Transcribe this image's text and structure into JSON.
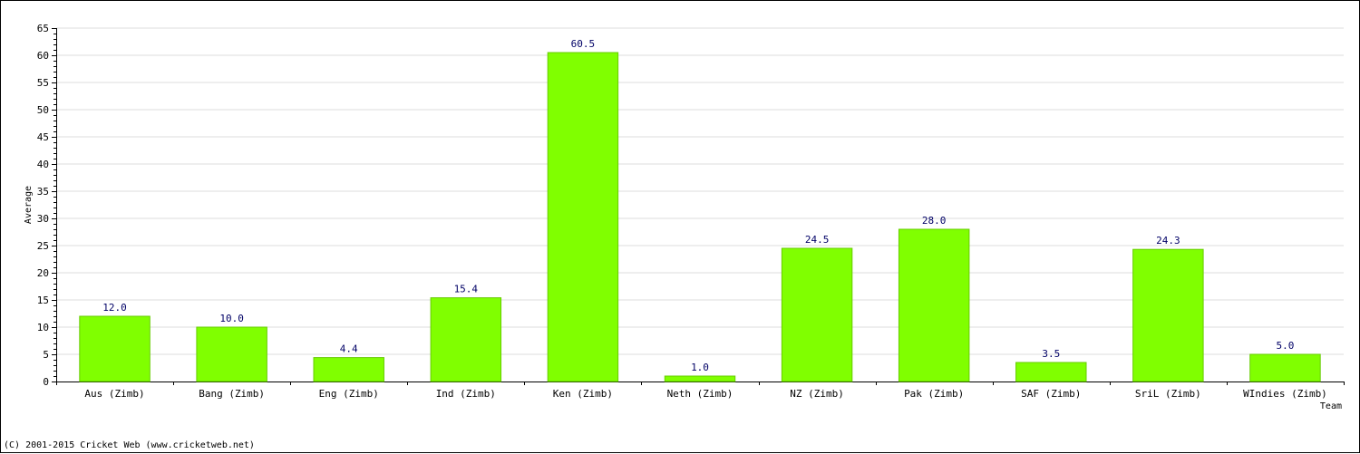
{
  "chart_data": {
    "type": "bar",
    "title": "",
    "xlabel": "Team",
    "ylabel": "Average",
    "categories": [
      "Aus (Zimb)",
      "Bang (Zimb)",
      "Eng (Zimb)",
      "Ind (Zimb)",
      "Ken (Zimb)",
      "Neth (Zimb)",
      "NZ (Zimb)",
      "Pak (Zimb)",
      "SAF (Zimb)",
      "SriL (Zimb)",
      "WIndies (Zimb)"
    ],
    "values": [
      12.0,
      10.0,
      4.4,
      15.4,
      60.5,
      1.0,
      24.5,
      28.0,
      3.5,
      24.3,
      5.0
    ],
    "value_labels": [
      "12.0",
      "10.0",
      "4.4",
      "15.4",
      "60.5",
      "1.0",
      "24.5",
      "28.0",
      "3.5",
      "24.3",
      "5.0"
    ],
    "ylim": [
      0,
      65
    ],
    "yticks": [
      0,
      5,
      10,
      15,
      20,
      25,
      30,
      35,
      40,
      45,
      50,
      55,
      60,
      65
    ],
    "grid": true,
    "legend": "none",
    "bar_color": "#80ff00",
    "bar_edge_color": "#66cc00",
    "grid_color": "#dddddd",
    "label_color": "#000066"
  },
  "footer": {
    "copyright": "(C) 2001-2015 Cricket Web (www.cricketweb.net)"
  }
}
